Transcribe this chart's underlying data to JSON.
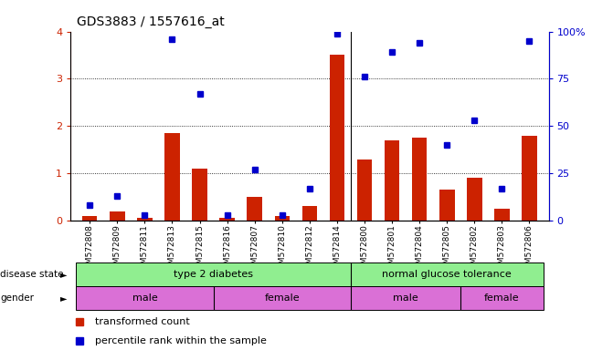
{
  "title": "GDS3883 / 1557616_at",
  "samples": [
    "GSM572808",
    "GSM572809",
    "GSM572811",
    "GSM572813",
    "GSM572815",
    "GSM572816",
    "GSM572807",
    "GSM572810",
    "GSM572812",
    "GSM572814",
    "GSM572800",
    "GSM572801",
    "GSM572804",
    "GSM572805",
    "GSM572802",
    "GSM572803",
    "GSM572806"
  ],
  "transformed_count": [
    0.1,
    0.2,
    0.05,
    1.85,
    1.1,
    0.05,
    0.5,
    0.1,
    0.3,
    3.5,
    1.3,
    1.7,
    1.75,
    0.65,
    0.9,
    0.25,
    1.8
  ],
  "percentile_rank": [
    8,
    13,
    3,
    96,
    67,
    3,
    27,
    3,
    17,
    99,
    76,
    89,
    94,
    40,
    53,
    17,
    95
  ],
  "ylim_left": [
    0,
    4
  ],
  "ylim_right": [
    0,
    100
  ],
  "yticks_left": [
    0,
    1,
    2,
    3,
    4
  ],
  "yticks_right": [
    0,
    25,
    50,
    75,
    100
  ],
  "bar_color": "#cc2200",
  "dot_color": "#0000cc",
  "disease_state_groups": [
    {
      "label": "type 2 diabetes",
      "start": 0,
      "end": 9,
      "color": "#90ee90"
    },
    {
      "label": "normal glucose tolerance",
      "start": 10,
      "end": 16,
      "color": "#90ee90"
    }
  ],
  "gender_groups": [
    {
      "label": "male",
      "start": 0,
      "end": 4,
      "color": "#da70d6"
    },
    {
      "label": "female",
      "start": 5,
      "end": 9,
      "color": "#da70d6"
    },
    {
      "label": "male",
      "start": 10,
      "end": 13,
      "color": "#da70d6"
    },
    {
      "label": "female",
      "start": 14,
      "end": 16,
      "color": "#da70d6"
    }
  ],
  "legend_items": [
    {
      "label": "transformed count",
      "color": "#cc2200"
    },
    {
      "label": "percentile rank within the sample",
      "color": "#0000cc"
    }
  ],
  "background_color": "#ffffff"
}
